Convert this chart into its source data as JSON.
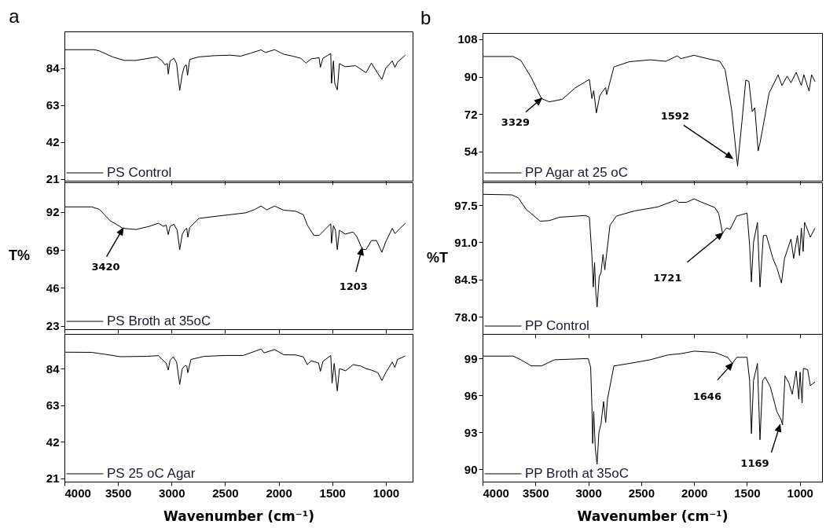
{
  "chart_data": [
    {
      "type": "line",
      "title": "a",
      "xlim": [
        4000,
        750
      ],
      "xticks": [
        4000,
        3500,
        3000,
        2500,
        2000,
        1500,
        1000
      ],
      "ylim": [
        20,
        105
      ],
      "yticks": [
        21,
        42,
        63,
        84
      ],
      "tick_labels": "y",
      "legend": "bottom left",
      "series": [
        {
          "name": "PS Control",
          "color": "#000000",
          "x": [
            4000,
            3722,
            3673,
            3551,
            3441,
            3331,
            3136,
            3087,
            3063,
            3039,
            3031,
            3014,
            2978,
            2953,
            2924,
            2900,
            2880,
            2863,
            2851,
            2831,
            2746,
            2599,
            2453,
            2355,
            2258,
            2165,
            2124,
            2038,
            1953,
            1867,
            1794,
            1745,
            1696,
            1623,
            1611,
            1587,
            1514,
            1507,
            1489,
            1477,
            1453,
            1433,
            1380,
            1282,
            1184,
            1135,
            1074,
            1037,
            1001,
            940,
            915,
            891,
            818
          ],
          "values": [
            94.6,
            94.6,
            93.9,
            90.5,
            88.5,
            88.5,
            90.5,
            88.2,
            86,
            86.7,
            80.7,
            88.2,
            89.7,
            86.7,
            71.4,
            80.7,
            85.2,
            86,
            80,
            89,
            90.5,
            91.2,
            91.5,
            90.9,
            92.7,
            94.5,
            93,
            94.6,
            92,
            90.9,
            89.7,
            87,
            89.4,
            90,
            84.5,
            89.7,
            92.4,
            75.5,
            88.2,
            75.5,
            71.7,
            86.7,
            84.9,
            85.5,
            81.5,
            87,
            81,
            77.7,
            84,
            88.2,
            84.5,
            87.5,
            91.5
          ]
        }
      ]
    },
    {
      "type": "line",
      "title": "b",
      "xlim": [
        4000,
        790
      ],
      "xticks": [
        4000,
        3500,
        3000,
        2500,
        2000,
        1500,
        1000
      ],
      "ylim": [
        40,
        111
      ],
      "yticks": [
        54,
        72,
        90,
        108
      ],
      "tick_labels": "y",
      "legend": "bottom left",
      "series": [
        {
          "name": "PP Agar at 25 oC",
          "color": "#000000",
          "x": [
            4000,
            3711,
            3638,
            3540,
            3443,
            3369,
            3247,
            3125,
            2990,
            2966,
            2949,
            2924,
            2892,
            2868,
            2836,
            2826,
            2758,
            2611,
            2416,
            2269,
            2159,
            2122,
            2000,
            1878,
            1756,
            1707,
            1646,
            1589,
            1548,
            1511,
            1482,
            1450,
            1426,
            1394,
            1377,
            1340,
            1291,
            1242,
            1206,
            1169,
            1120,
            1084,
            1035,
            986,
            962,
            913,
            889,
            857
          ],
          "values": [
            99.7,
            99.7,
            97.8,
            89.6,
            79.5,
            77.9,
            79.1,
            84.6,
            88.7,
            79.5,
            83.3,
            72.6,
            80.8,
            82.7,
            84.8,
            81.4,
            94.7,
            97.2,
            98.1,
            97.4,
            100,
            98.7,
            100.3,
            98.7,
            97.4,
            93.4,
            74.5,
            47,
            68.2,
            88.4,
            87.7,
            73.2,
            75.1,
            54.3,
            58.1,
            68.2,
            82.1,
            87.1,
            90.9,
            85.8,
            90.3,
            87.1,
            92.1,
            85.8,
            90.9,
            83.1,
            90.9,
            87.7
          ]
        }
      ],
      "annotations": [
        {
          "text": "3329",
          "x": 3443,
          "y": 79.5
        },
        {
          "text": "1592",
          "x": 1638,
          "y": 50.8
        }
      ]
    },
    {
      "type": "line",
      "xlim": [
        4000,
        750
      ],
      "xticks": [
        4000,
        3500,
        3000,
        2500,
        2000,
        1500,
        1000
      ],
      "ylim": [
        21,
        110
      ],
      "yticks": [
        23,
        46,
        69,
        92
      ],
      "ylabel": "T%",
      "tick_labels": "y",
      "legend": "bottom left",
      "series": [
        {
          "name": "PS Broth at 35oC",
          "color": "#000000",
          "x": [
            4000,
            3746,
            3673,
            3575,
            3453,
            3331,
            3209,
            3124,
            3075,
            3051,
            3031,
            3014,
            2978,
            2948,
            2924,
            2900,
            2875,
            2858,
            2848,
            2831,
            2746,
            2599,
            2453,
            2307,
            2221,
            2165,
            2111,
            2038,
            1953,
            1843,
            1770,
            1733,
            1672,
            1623,
            1562,
            1514,
            1507,
            1489,
            1470,
            1453,
            1433,
            1380,
            1306,
            1270,
            1221,
            1184,
            1135,
            1087,
            1037,
            1001,
            940,
            915,
            867,
            818
          ],
          "values": [
            95.1,
            95.1,
            93.6,
            86.8,
            82.1,
            81.4,
            83.3,
            85.2,
            83.3,
            84.1,
            78.3,
            83.3,
            84.6,
            81,
            69.2,
            78.6,
            81.3,
            82.1,
            76.7,
            82.6,
            88.1,
            89.3,
            90.4,
            91.5,
            93.6,
            95.6,
            93.3,
            95.6,
            93.1,
            92.5,
            90.4,
            84.1,
            77.8,
            77.8,
            81.8,
            84.9,
            73.1,
            83.7,
            81,
            69.2,
            81,
            78.6,
            79.9,
            77,
            69.5,
            69.2,
            74.7,
            74.7,
            67.6,
            73.9,
            82.1,
            78.9,
            82.1,
            85.2
          ]
        }
      ],
      "annotations": [
        {
          "text": "3420",
          "x": 3453,
          "y": 82.1
        },
        {
          "text": "1203",
          "x": 1221,
          "y": 70
        }
      ]
    },
    {
      "type": "line",
      "xlim": [
        4000,
        790
      ],
      "xticks": [
        4000,
        3500,
        3000,
        2500,
        2000,
        1500,
        1000
      ],
      "ylim": [
        75,
        101.5
      ],
      "yticks": [
        {
          "value": 78,
          "label": "78.0"
        },
        84.5,
        {
          "value": 91,
          "label": "91.0"
        },
        97.5
      ],
      "ylabel": "%T",
      "tick_labels": "y",
      "legend": "bottom left",
      "series": [
        {
          "name": "PP Control",
          "color": "#000000",
          "x": [
            4000,
            3724,
            3663,
            3589,
            3455,
            3369,
            3271,
            3027,
            2990,
            2966,
            2953,
            2941,
            2929,
            2917,
            2897,
            2880,
            2861,
            2844,
            2826,
            2795,
            2734,
            2562,
            2342,
            2171,
            2147,
            2073,
            2000,
            1927,
            1805,
            1768,
            1731,
            1695,
            1658,
            1597,
            1499,
            1475,
            1458,
            1438,
            1401,
            1377,
            1345,
            1316,
            1255,
            1218,
            1174,
            1145,
            1084,
            1059,
            1023,
            1003,
            986,
            969,
            955,
            901,
            857
          ],
          "values": [
            99.4,
            99.3,
            98.8,
            96.8,
            94.7,
            94.8,
            95.4,
            95.7,
            95.4,
            88.7,
            83.2,
            87.5,
            82.2,
            79.7,
            85,
            85.7,
            88.9,
            86.2,
            89.2,
            94,
            95.6,
            96.5,
            97.2,
            98.4,
            98,
            98,
            98.6,
            98,
            97.1,
            96.1,
            92.6,
            93.5,
            93.3,
            95.6,
            96.1,
            90.5,
            84.1,
            91,
            94.5,
            83.2,
            92.2,
            92.2,
            88.2,
            86.6,
            83.9,
            88.2,
            91.6,
            88.2,
            92.2,
            88.7,
            93.5,
            89.4,
            94.5,
            91.9,
            93.5
          ]
        }
      ],
      "annotations": [
        {
          "text": "1721",
          "x": 1731,
          "y": 92.6
        }
      ]
    },
    {
      "type": "line",
      "xlim": [
        4000,
        750
      ],
      "xticks": [
        4000,
        3500,
        3000,
        2500,
        2000,
        1500,
        1000
      ],
      "ylim": [
        19,
        104
      ],
      "yticks": [
        21,
        42,
        63,
        84
      ],
      "xlabel": "Wavenumber (cm⁻¹)",
      "legend": "bottom left",
      "series": [
        {
          "name": "PS 25 oC Agar",
          "color": "#000000",
          "x": [
            4000,
            3746,
            3624,
            3478,
            3234,
            3124,
            3075,
            3051,
            3031,
            3014,
            2985,
            2953,
            2924,
            2900,
            2875,
            2858,
            2848,
            2819,
            2697,
            2502,
            2331,
            2165,
            2136,
            2038,
            1953,
            1843,
            1770,
            1733,
            1696,
            1628,
            1611,
            1587,
            1514,
            1502,
            1482,
            1453,
            1433,
            1375,
            1306,
            1233,
            1184,
            1135,
            1074,
            1037,
            1001,
            940,
            915,
            891,
            818
          ],
          "values": [
            93.5,
            93.4,
            92.3,
            90.9,
            91.1,
            91.5,
            88.5,
            87.3,
            83.2,
            88.8,
            90.8,
            87.8,
            74.9,
            84,
            85.8,
            85.5,
            81.7,
            89.3,
            91.1,
            91.6,
            91.6,
            95.3,
            93.1,
            95,
            92,
            91.9,
            90.8,
            86.3,
            88.5,
            87.3,
            82.5,
            88.2,
            91.6,
            75.7,
            87,
            71.2,
            84,
            82.8,
            86.3,
            85.5,
            84,
            83.2,
            81.7,
            77.2,
            81.7,
            87.8,
            84.8,
            89.3,
            91.3
          ]
        }
      ]
    },
    {
      "type": "line",
      "xlim": [
        4000,
        790
      ],
      "xticks": [
        4000,
        3500,
        3000,
        2500,
        2000,
        1500,
        1000
      ],
      "ylim": [
        89,
        101
      ],
      "yticks": [
        90,
        93,
        96,
        99
      ],
      "xlabel": "Wavenumber (cm⁻¹)",
      "legend": "bottom left",
      "series": [
        {
          "name": "PP Broth at 35oC",
          "color": "#000000",
          "x": [
            4000,
            3711,
            3638,
            3540,
            3443,
            3320,
            3002,
            2978,
            2966,
            2959,
            2949,
            2934,
            2917,
            2900,
            2880,
            2856,
            2836,
            2819,
            2758,
            2611,
            2416,
            2244,
            2122,
            2000,
            1805,
            1683,
            1638,
            1597,
            1499,
            1475,
            1458,
            1438,
            1401,
            1377,
            1352,
            1328,
            1279,
            1218,
            1176,
            1164,
            1140,
            1103,
            1072,
            1035,
            1010,
            998,
            979,
            967,
            926,
            901,
            857
          ],
          "values": [
            99.2,
            99.2,
            98.9,
            98.4,
            98.4,
            98.9,
            99,
            98.3,
            95.1,
            92.1,
            94.7,
            91.7,
            90.4,
            93,
            93.7,
            95.5,
            93.8,
            95.7,
            98.4,
            98.6,
            98.9,
            99.3,
            99.4,
            99.6,
            99.5,
            99.1,
            98.6,
            99.1,
            99.1,
            97.2,
            92.9,
            97.2,
            98.6,
            92.4,
            97.2,
            97.5,
            96.7,
            94.7,
            94,
            93.6,
            97.6,
            97,
            96.1,
            98,
            95.7,
            97.9,
            95.4,
            98.2,
            98.1,
            96.8,
            97.1
          ]
        }
      ],
      "annotations": [
        {
          "text": "1646",
          "x": 1638,
          "y": 98.6
        },
        {
          "text": "1169",
          "x": 1188,
          "y": 93.6
        }
      ]
    }
  ]
}
